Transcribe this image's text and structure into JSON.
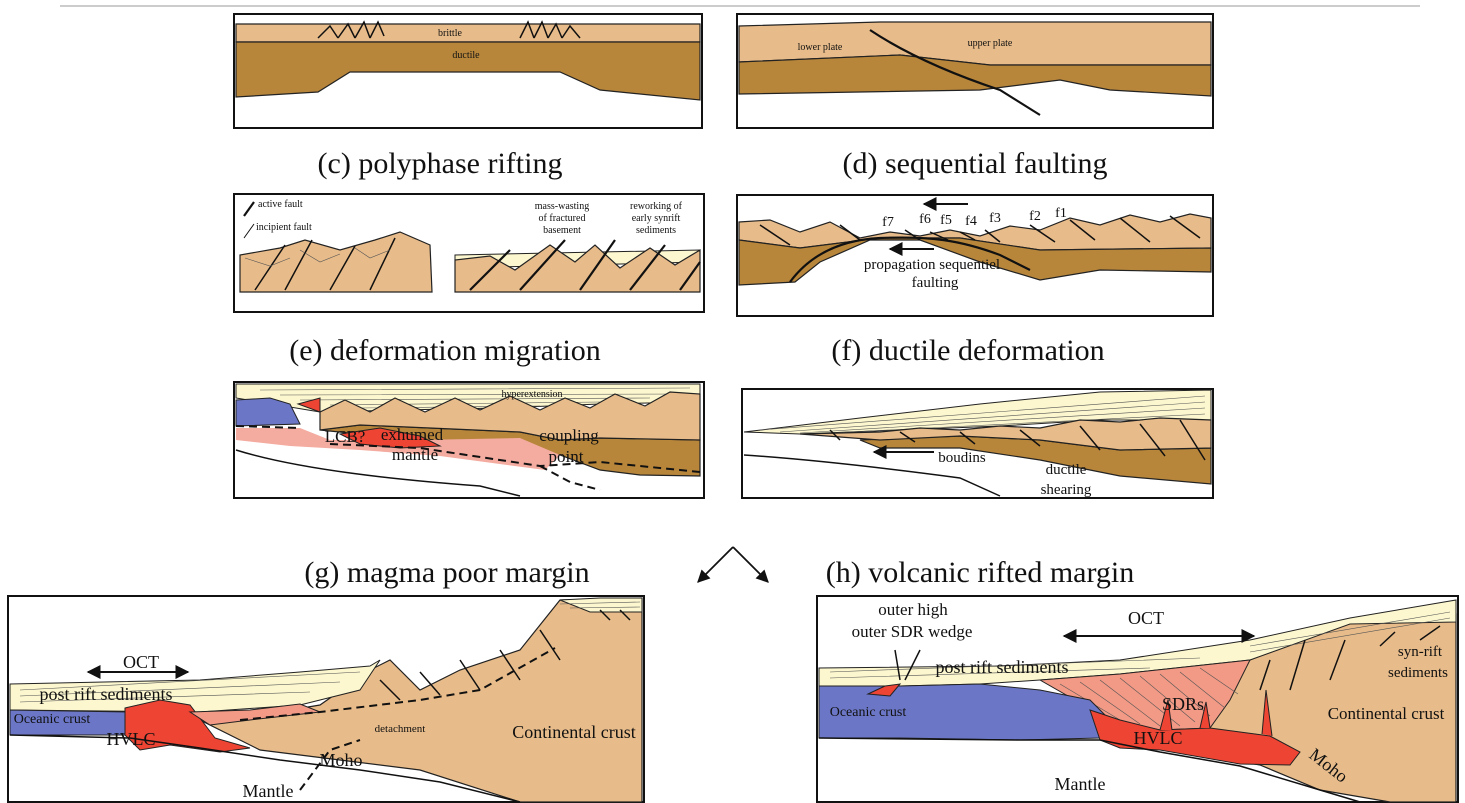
{
  "colors": {
    "upper_crust": "#E8BC8A",
    "lower_crust": "#B8863B",
    "sediments": "#FCF7CF",
    "oceanic_crust": "#6B77C6",
    "magmatic": "#EE4433",
    "exhumed_mantle": "#F4ABA0"
  },
  "panel_a": {
    "label_brittle": "brittle",
    "label_ductile": "ductile"
  },
  "panel_b": {
    "label_lower_plate": "lower plate",
    "label_upper_plate": "upper plate"
  },
  "panel_c": {
    "title": "(c) polyphase rifting",
    "legend_active": "active fault",
    "legend_incipient": "incipient fault",
    "mass_wasting": [
      "mass-wasting",
      "of fractured",
      "basement"
    ],
    "reworking": [
      "reworking of",
      "early synrift",
      "sediments"
    ]
  },
  "panel_d": {
    "title": "(d) sequential faulting",
    "faults": [
      "f7",
      "f6",
      "f5",
      "f4",
      "f3",
      "f2",
      "f1"
    ],
    "propagation": [
      "propagation sequentiel",
      "faulting"
    ]
  },
  "panel_e": {
    "title": "(e) deformation migration",
    "hyperextension": "hyperextension",
    "lcb": "LCB?",
    "exhumed_mantle": [
      "exhumed",
      "mantle"
    ],
    "coupling_point": [
      "coupling",
      "point"
    ]
  },
  "panel_f": {
    "title": "(f)  ductile deformation",
    "boudins": "boudins",
    "ductile_shearing": [
      "ductile",
      "shearing"
    ]
  },
  "panel_g": {
    "title": "(g) magma poor margin",
    "oct": "OCT",
    "post_rift": "post rift sediments",
    "oceanic_crust": "Oceanic crust",
    "hvlc": "HVLC",
    "detachment": "detachment",
    "moho": "Moho",
    "mantle": "Mantle",
    "continental_crust": "Continental crust"
  },
  "panel_h": {
    "title": "(h) volcanic rifted margin",
    "outer_high": "outer high",
    "outer_sdr": "outer SDR wedge",
    "oct": "OCT",
    "post_rift": "post rift sediments",
    "sdrs": "SDRs",
    "syn_rift": [
      "syn-rift",
      "sediments"
    ],
    "oceanic_crust": "Oceanic crust",
    "hvlc": "HVLC",
    "continental_crust": "Continental crust",
    "moho": "Moho",
    "mantle": "Mantle"
  }
}
